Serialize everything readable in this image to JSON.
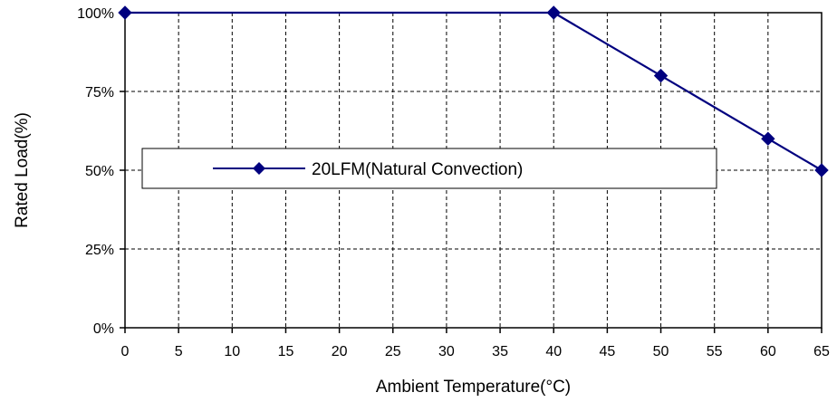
{
  "chart_data": {
    "type": "line",
    "title": "",
    "xlabel": "Ambient Temperature(°C)",
    "ylabel": "Rated Load(%)",
    "x_ticks": [
      "0",
      "5",
      "10",
      "15",
      "20",
      "25",
      "30",
      "35",
      "40",
      "45",
      "50",
      "55",
      "60",
      "65"
    ],
    "y_ticks": [
      "0%",
      "25%",
      "50%",
      "75%",
      "100%"
    ],
    "xlim": [
      0,
      65
    ],
    "ylim": [
      0,
      100
    ],
    "grid": true,
    "grid_style": "dashed",
    "legend_position": "center-left",
    "series": [
      {
        "name": "20LFM(Natural Convection)",
        "color": "#00007f",
        "marker": "diamond",
        "x": [
          0,
          40,
          50,
          60,
          65
        ],
        "y": [
          100,
          100,
          80,
          60,
          50
        ]
      }
    ]
  }
}
